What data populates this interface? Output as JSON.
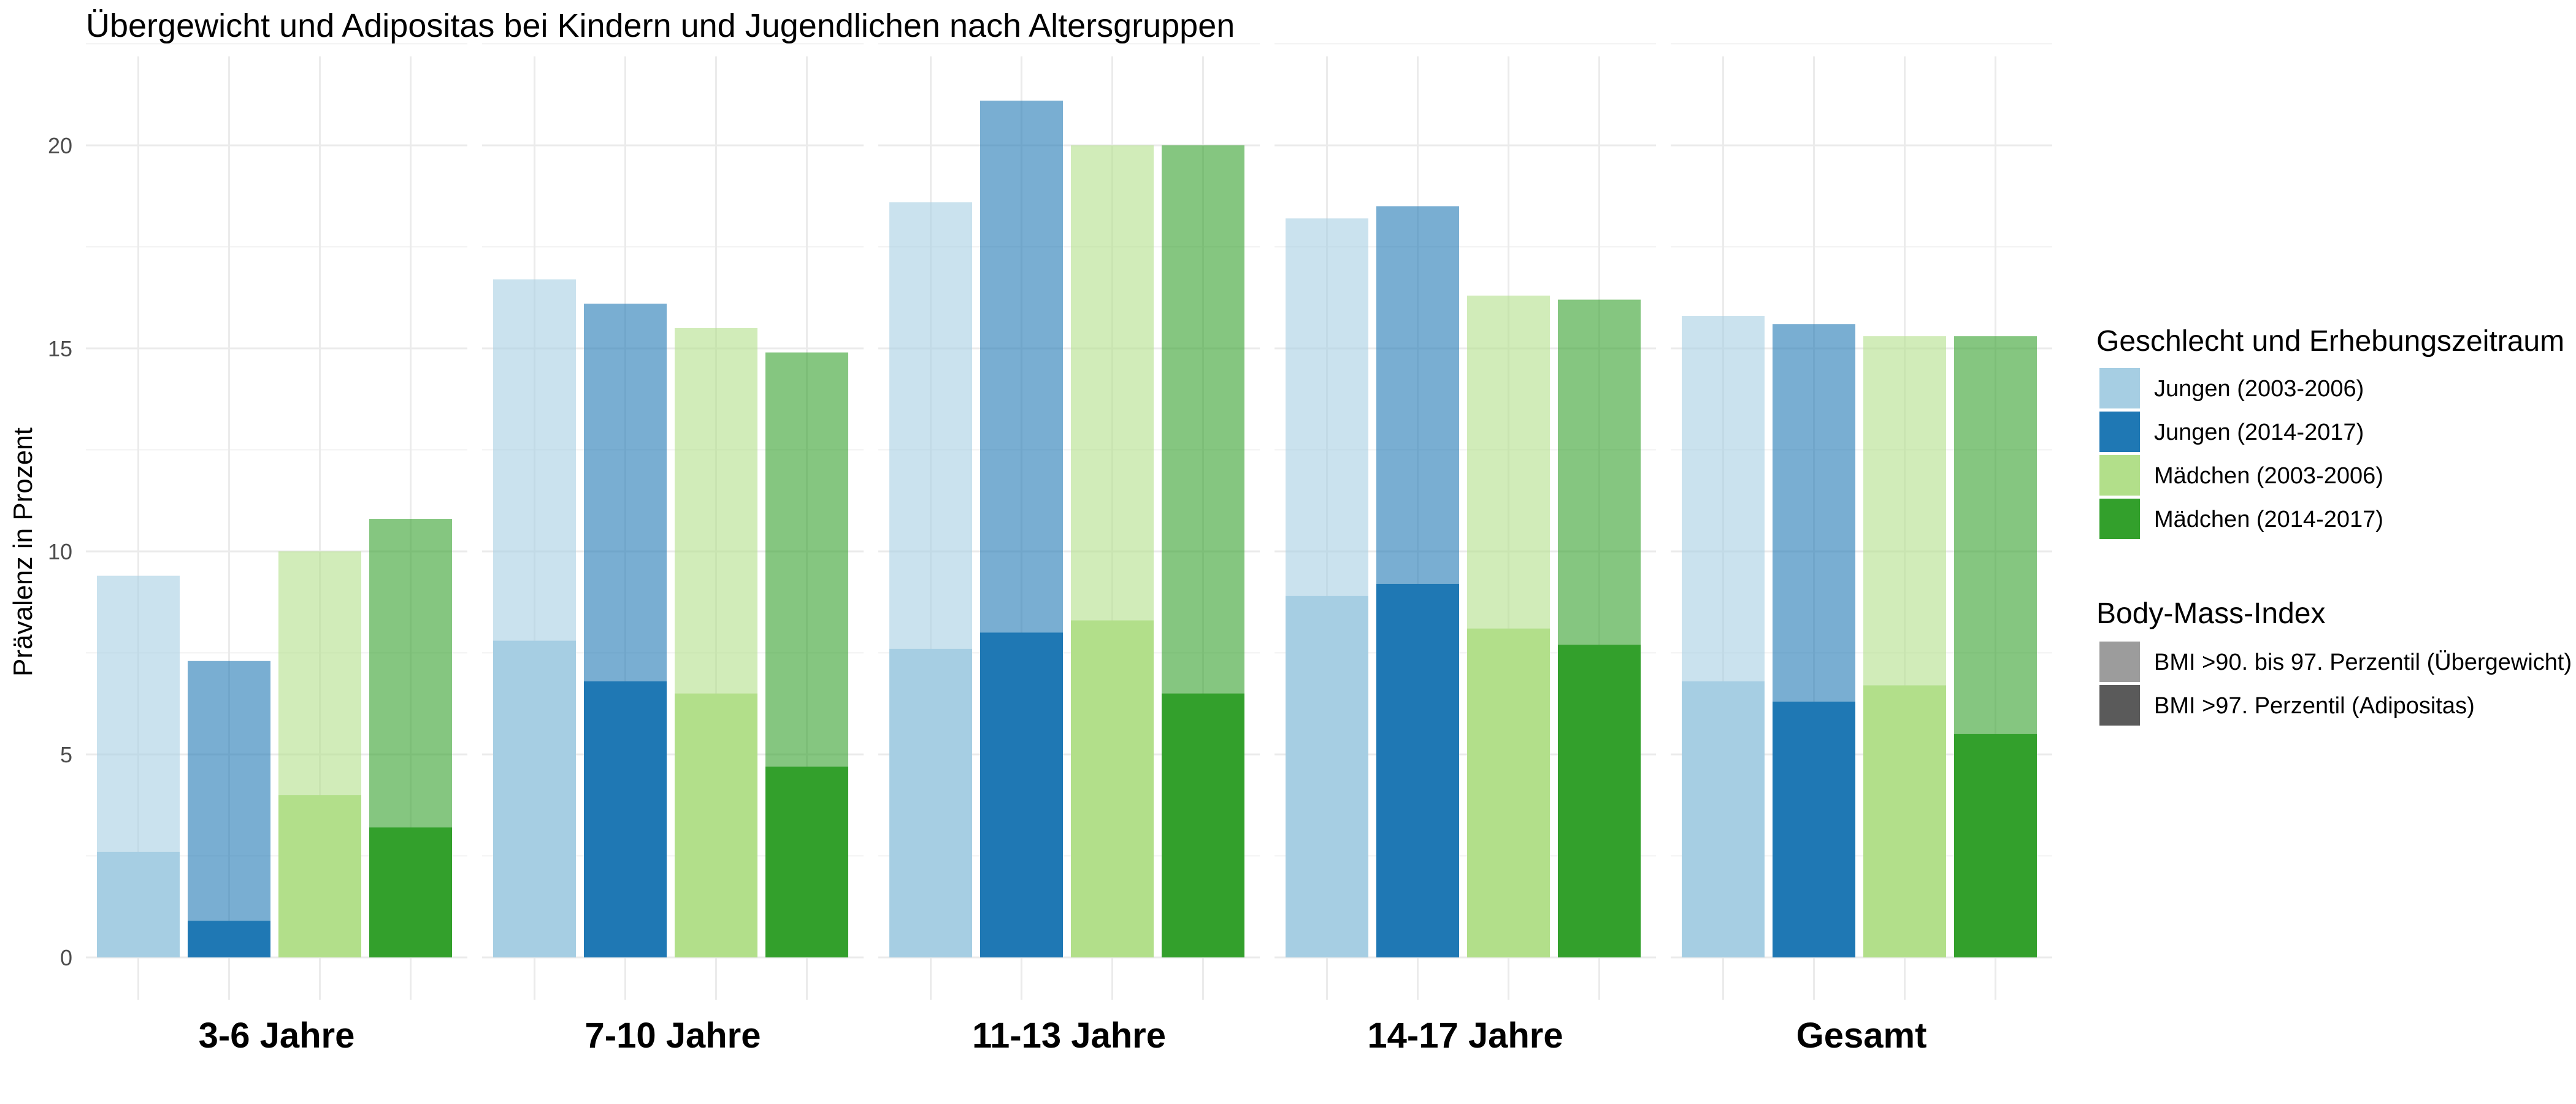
{
  "chart_data": {
    "type": "bar",
    "title": "Übergewicht und Adipositas bei Kindern und Jugendlichen nach Altersgruppen",
    "xlabel": "",
    "ylabel": "Prävalenz in Prozent",
    "ylim": [
      0,
      22.5
    ],
    "yticks": [
      0,
      5,
      10,
      15,
      20
    ],
    "grid": true,
    "facets": [
      "3-6 Jahre",
      "7-10 Jahre",
      "11-13 Jahre",
      "14-17 Jahre",
      "Gesamt"
    ],
    "series": [
      {
        "name": "Jungen (2003-2006)",
        "color": "#a6cee3",
        "uebergewicht_total": [
          9.4,
          16.7,
          18.6,
          18.2,
          15.8
        ],
        "adipositas": [
          2.6,
          7.8,
          7.6,
          8.9,
          6.8
        ]
      },
      {
        "name": "Jungen (2014-2017)",
        "color": "#1f78b4",
        "uebergewicht_total": [
          7.3,
          16.1,
          21.1,
          18.5,
          15.6
        ],
        "adipositas": [
          0.9,
          6.8,
          8.0,
          9.2,
          6.3
        ]
      },
      {
        "name": "Mädchen (2003-2006)",
        "color": "#b2df8a",
        "uebergewicht_total": [
          10.0,
          15.5,
          20.0,
          16.3,
          15.3
        ],
        "adipositas": [
          4.0,
          6.5,
          8.3,
          8.1,
          6.7
        ]
      },
      {
        "name": "Mädchen (2014-2017)",
        "color": "#33a02c",
        "uebergewicht_total": [
          10.8,
          14.9,
          20.0,
          16.2,
          15.3
        ],
        "adipositas": [
          3.2,
          4.7,
          6.5,
          7.7,
          5.5
        ]
      }
    ],
    "legend": {
      "placement": "right",
      "group_title": "Geschlecht und Erhebungszeitraum",
      "bmi_title": "Body-Mass-Index",
      "bmi_items": [
        {
          "label": "BMI >90. bis 97. Perzentil (Übergewicht)",
          "color": "#9c9c9c"
        },
        {
          "label": "BMI >97. Perzentil (Adipositas)",
          "color": "#5a5a5a"
        }
      ]
    }
  }
}
